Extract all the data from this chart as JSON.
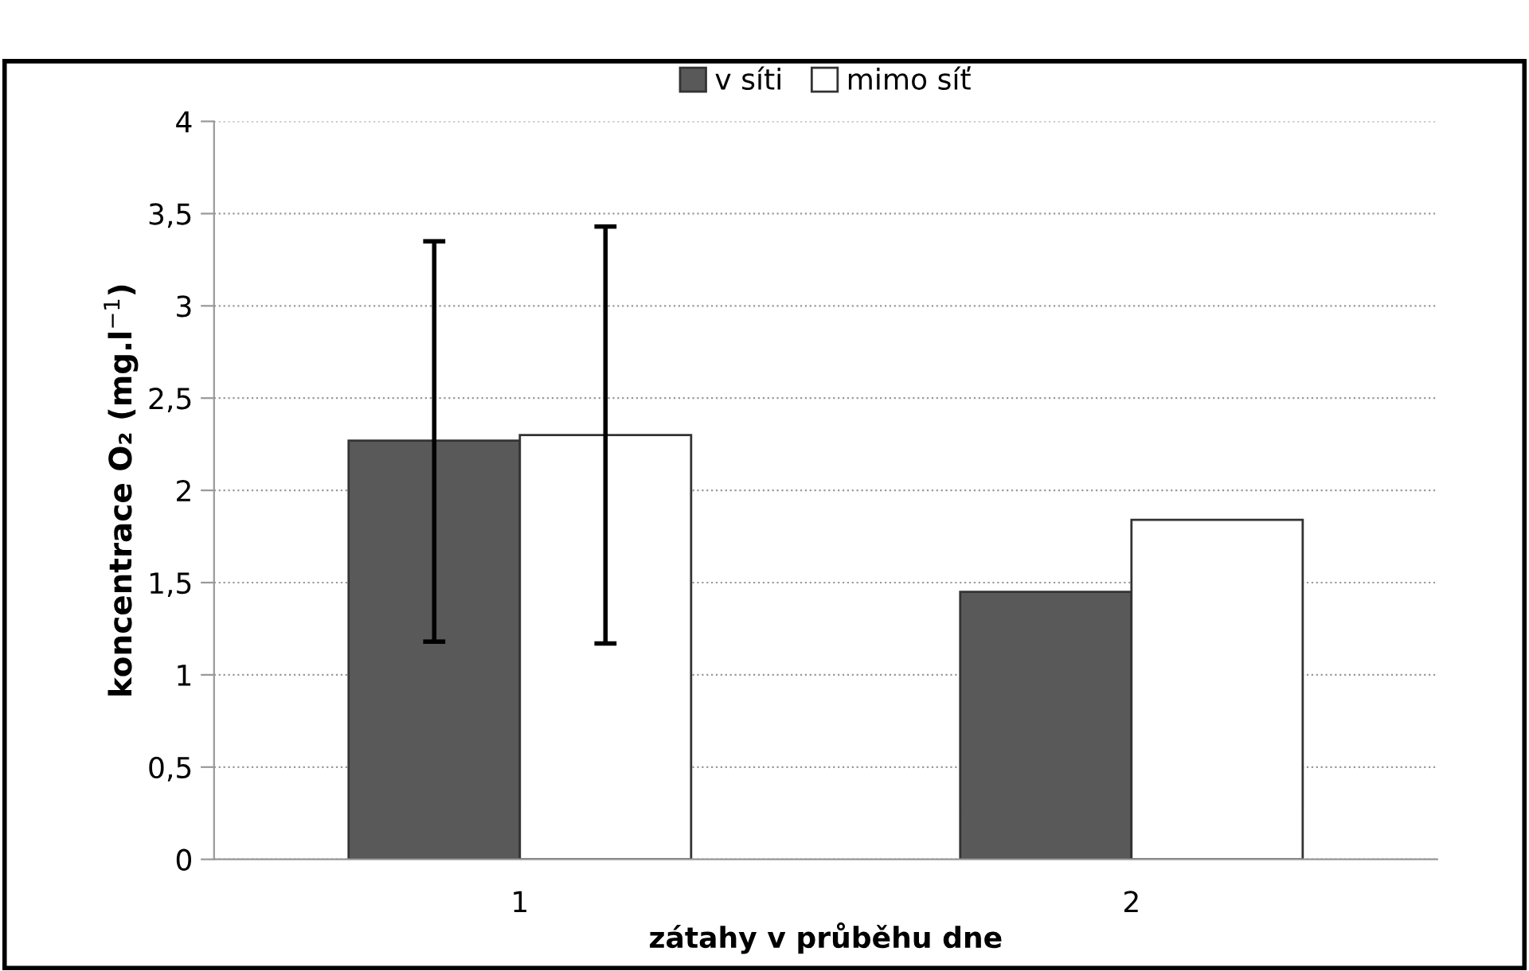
{
  "chart_data": {
    "type": "bar",
    "xlabel": "zátahy v průběhu dne",
    "ylabel": "koncentrace O₂ (mg.l$^{−1}$)",
    "categories": [
      "1",
      "2"
    ],
    "series": [
      {
        "name": "v síti",
        "color": "#595959",
        "values": [
          2.27,
          1.45
        ],
        "errors": [
          [
            1.18,
            3.35
          ],
          null
        ]
      },
      {
        "name": "mimo síť",
        "color": "#ffffff",
        "values": [
          2.3,
          1.84
        ],
        "errors": [
          [
            1.17,
            3.43
          ],
          null
        ]
      }
    ],
    "ylim": [
      0,
      4
    ],
    "yticks": [
      0,
      {
        "value": 0.5,
        "label": "0,5"
      },
      1,
      {
        "value": 1.5,
        "label": "1,5"
      },
      2,
      {
        "value": 2.5,
        "label": "2,5"
      },
      3,
      {
        "value": 3.5,
        "label": "3,5"
      },
      4
    ],
    "grid": "y",
    "legend": "top"
  }
}
